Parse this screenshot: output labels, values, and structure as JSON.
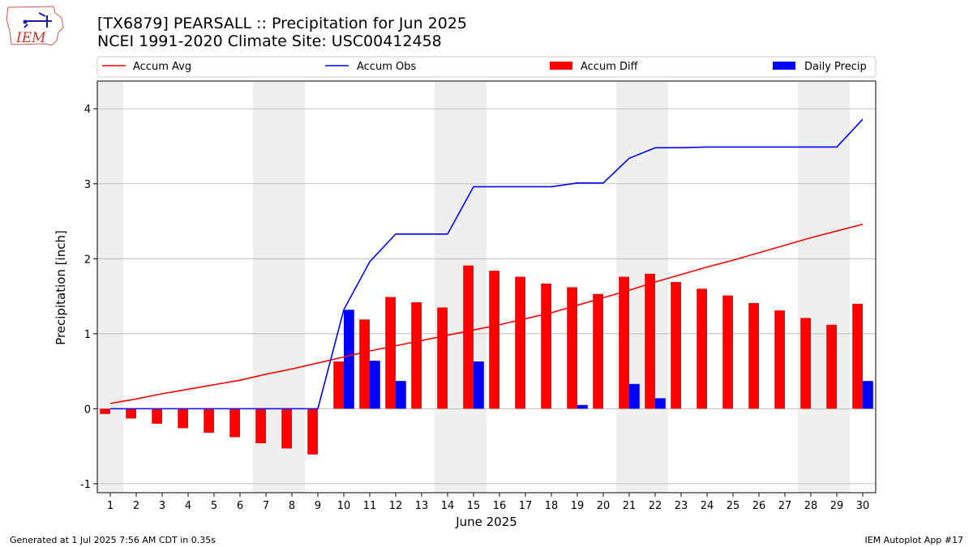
{
  "header": {
    "title_line1": "[TX6879] PEARSALL :: Precipitation for Jun 2025",
    "title_line2": "NCEI 1991-2020 Climate Site: USC00412458",
    "logo_text": "IEM"
  },
  "footer": {
    "left": "Generated at 1 Jul 2025 7:56 AM CDT in 0.35s",
    "right": "IEM Autoplot App #17"
  },
  "colors": {
    "avg": "#ff0000",
    "obs": "#0000ff",
    "diff": "#ff0000",
    "daily": "#0000ff",
    "weekend": "#efefef",
    "grid": "#b0b0b0"
  },
  "chart_data": {
    "type": "bar",
    "title": "[TX6879] PEARSALL :: Precipitation for Jun 2025",
    "subtitle": "NCEI 1991-2020 Climate Site: USC00412458",
    "xlabel": "June 2025",
    "ylabel": "Precipitation [inch]",
    "ylim": [
      -1.12,
      4.37
    ],
    "yticks": [
      -1,
      0,
      1,
      2,
      3,
      4
    ],
    "grid": "horizontal",
    "legend_position": "top",
    "legend": [
      "Accum Avg",
      "Accum Obs",
      "Accum Diff",
      "Daily Precip"
    ],
    "categories": [
      "1",
      "2",
      "3",
      "4",
      "5",
      "6",
      "7",
      "8",
      "9",
      "10",
      "11",
      "12",
      "13",
      "14",
      "15",
      "16",
      "17",
      "18",
      "19",
      "20",
      "21",
      "22",
      "23",
      "24",
      "25",
      "26",
      "27",
      "28",
      "29",
      "30"
    ],
    "shaded_days": [
      [
        1,
        1
      ],
      [
        7,
        8
      ],
      [
        14,
        15
      ],
      [
        21,
        22
      ],
      [
        28,
        29
      ]
    ],
    "series": [
      {
        "name": "Accum Avg",
        "kind": "line",
        "values": [
          0.07,
          0.13,
          0.2,
          0.26,
          0.32,
          0.38,
          0.46,
          0.53,
          0.61,
          0.69,
          0.77,
          0.84,
          0.91,
          0.98,
          1.05,
          1.12,
          1.2,
          1.28,
          1.38,
          1.48,
          1.58,
          1.69,
          1.79,
          1.89,
          1.98,
          2.08,
          2.18,
          2.28,
          2.37,
          2.46
        ]
      },
      {
        "name": "Accum Obs",
        "kind": "line",
        "values": [
          0,
          0,
          0,
          0,
          0,
          0,
          0,
          0,
          0,
          1.32,
          1.96,
          2.33,
          2.33,
          2.33,
          2.96,
          2.96,
          2.96,
          2.96,
          3.01,
          3.01,
          3.34,
          3.48,
          3.48,
          3.49,
          3.49,
          3.49,
          3.49,
          3.49,
          3.49,
          3.86
        ]
      },
      {
        "name": "Accum Diff",
        "kind": "bar",
        "values": [
          -0.07,
          -0.13,
          -0.2,
          -0.26,
          -0.32,
          -0.38,
          -0.46,
          -0.53,
          -0.61,
          0.63,
          1.19,
          1.49,
          1.42,
          1.35,
          1.91,
          1.84,
          1.76,
          1.67,
          1.62,
          1.53,
          1.76,
          1.8,
          1.69,
          1.6,
          1.51,
          1.41,
          1.31,
          1.21,
          1.12,
          1.4
        ]
      },
      {
        "name": "Daily Precip",
        "kind": "bar",
        "values": [
          0,
          0,
          0,
          0,
          0,
          0,
          0,
          0,
          0,
          1.32,
          0.64,
          0.37,
          0,
          0,
          0.63,
          0,
          0,
          0,
          0.05,
          0,
          0.33,
          0.14,
          0,
          0,
          0,
          0,
          0,
          0,
          0,
          0.37
        ]
      }
    ]
  }
}
